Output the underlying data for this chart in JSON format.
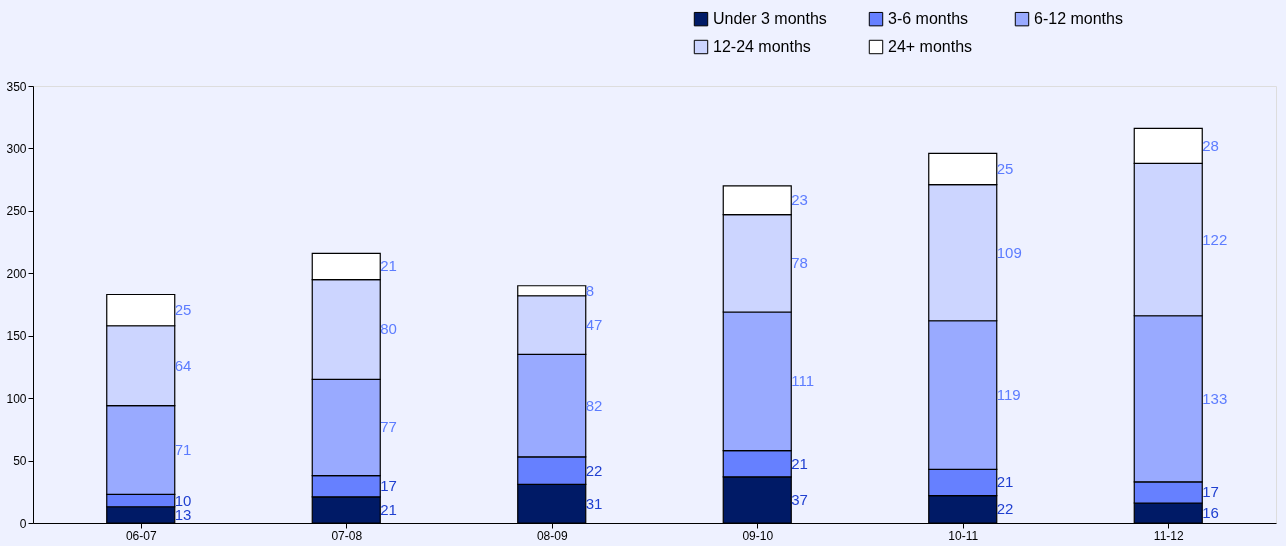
{
  "chart_data": {
    "type": "bar",
    "stacked": true,
    "categories": [
      "06-07",
      "07-08",
      "08-09",
      "09-10",
      "10-11",
      "11-12"
    ],
    "series": [
      {
        "name": "Under 3 months",
        "color": "#001a66",
        "values": [
          13,
          21,
          31,
          37,
          22,
          16
        ]
      },
      {
        "name": "3-6 months",
        "color": "#6680ff",
        "values": [
          10,
          17,
          22,
          21,
          21,
          17
        ]
      },
      {
        "name": "6-12 months",
        "color": "#99aaff",
        "values": [
          71,
          77,
          82,
          111,
          119,
          133
        ]
      },
      {
        "name": "12-24 months",
        "color": "#ccd5ff",
        "values": [
          64,
          80,
          47,
          78,
          109,
          122
        ]
      },
      {
        "name": "24+ months",
        "color": "#ffffff",
        "values": [
          25,
          21,
          8,
          23,
          25,
          28
        ]
      }
    ],
    "ylim": [
      0,
      350
    ],
    "yticks": [
      0,
      50,
      100,
      150,
      200,
      250,
      300,
      350
    ],
    "grid": false,
    "legend": "top right",
    "data_labels": true
  }
}
